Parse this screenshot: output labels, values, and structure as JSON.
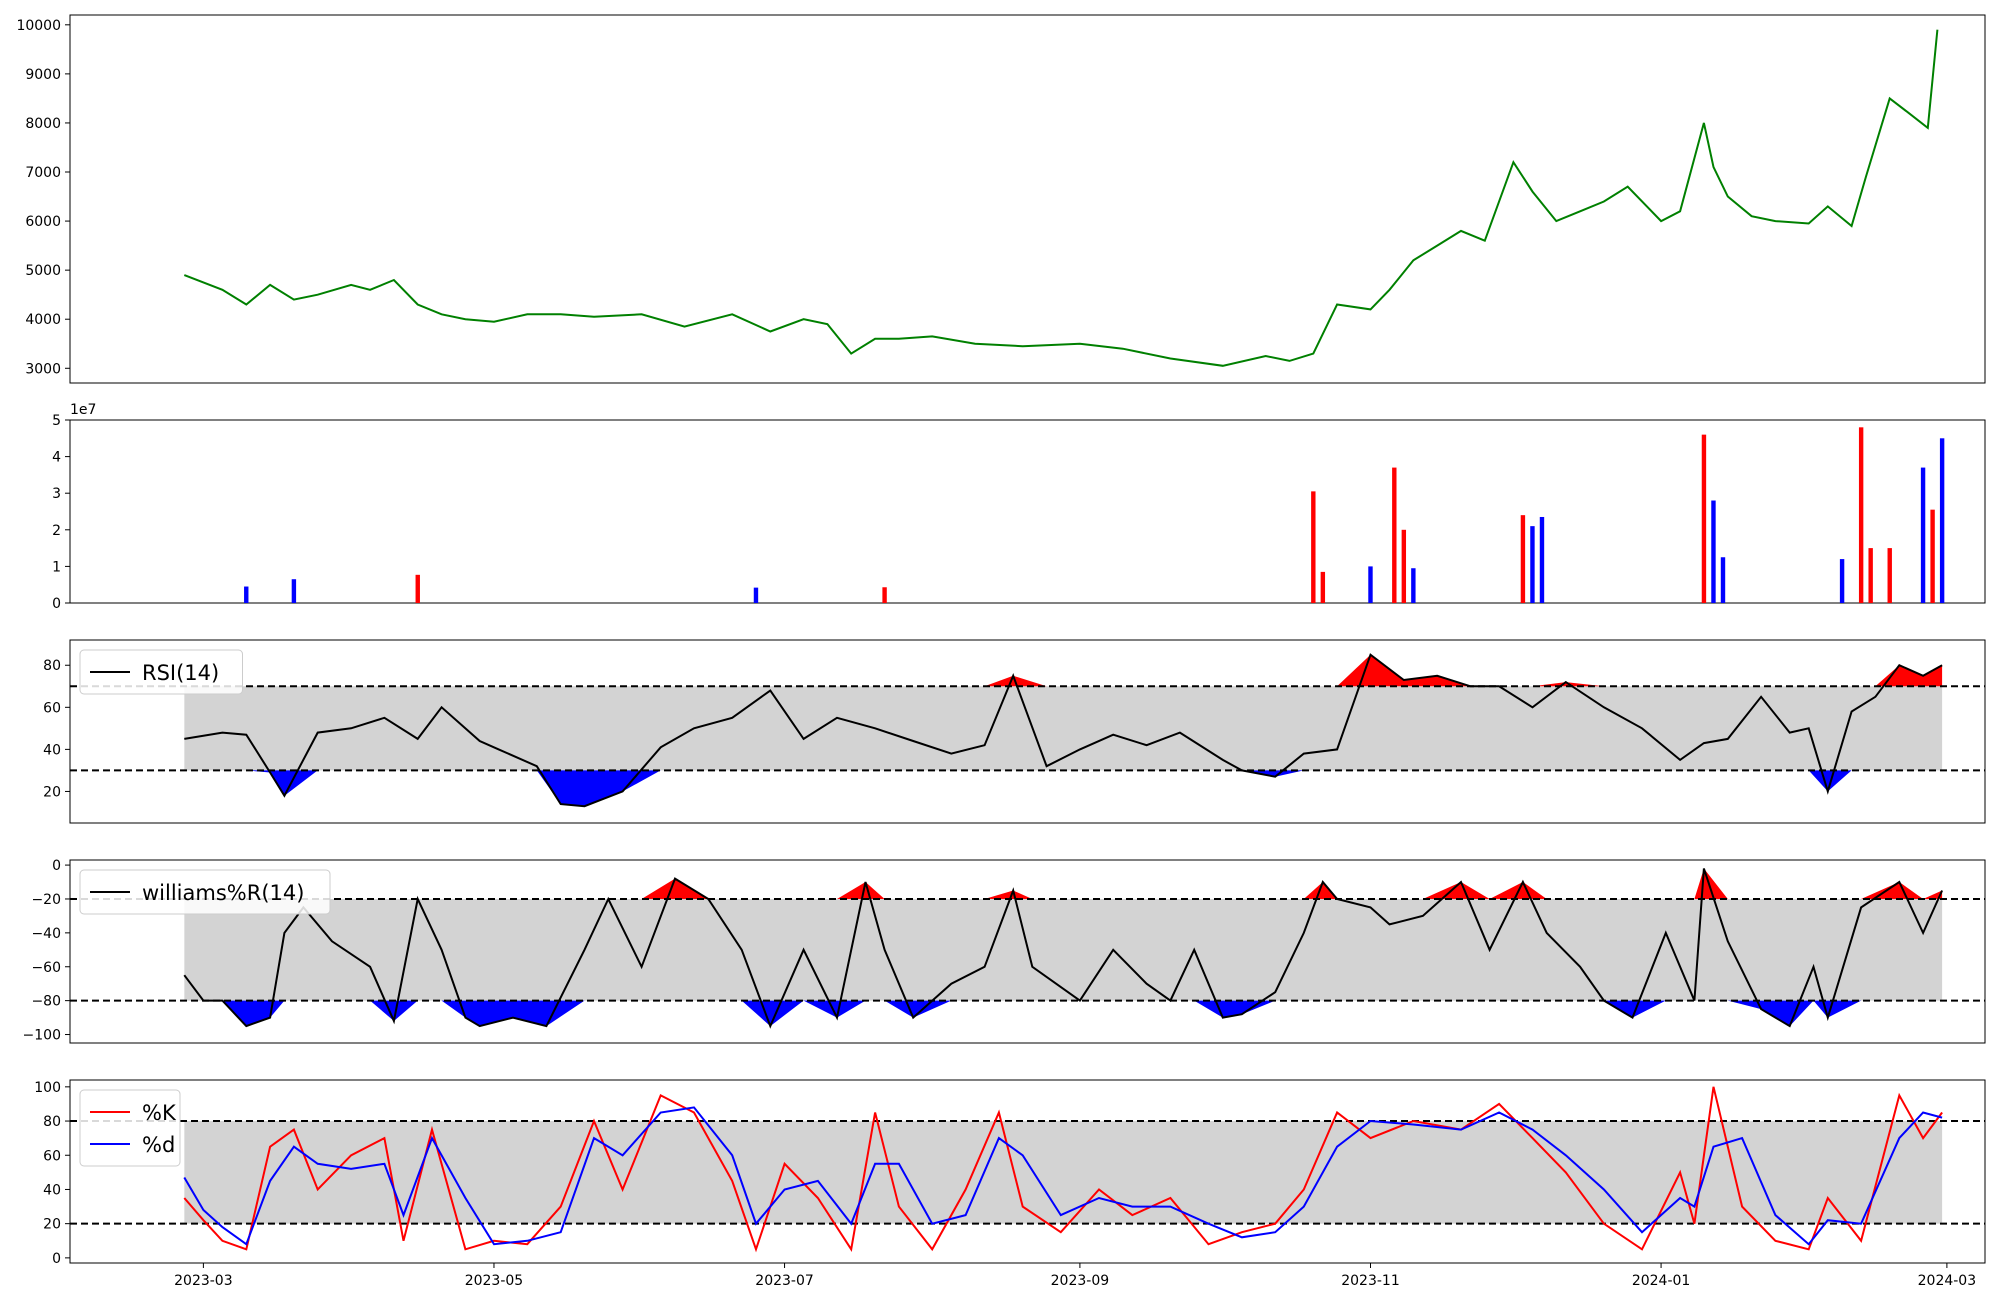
{
  "chart_data": [
    {
      "id": "price",
      "type": "line",
      "xlabel": "",
      "ylabel": "",
      "ylim": [
        2700,
        10200
      ],
      "yticks": [
        3000,
        4000,
        5000,
        6000,
        7000,
        8000,
        9000,
        10000
      ],
      "ytick_labels": [
        "3000",
        "4000",
        "5000",
        "6000",
        "7000",
        "8000",
        "9000",
        "10000"
      ],
      "grid": false,
      "colors": {
        "line": "#008000"
      },
      "series": [
        {
          "x": [
            "2023-02-25",
            "2023-03-05",
            "2023-03-10",
            "2023-03-15",
            "2023-03-20",
            "2023-03-25",
            "2023-04-01",
            "2023-04-05",
            "2023-04-10",
            "2023-04-15",
            "2023-04-20",
            "2023-04-25",
            "2023-05-01",
            "2023-05-08",
            "2023-05-15",
            "2023-05-22",
            "2023-06-01",
            "2023-06-10",
            "2023-06-20",
            "2023-06-28",
            "2023-07-05",
            "2023-07-10",
            "2023-07-15",
            "2023-07-20",
            "2023-07-25",
            "2023-08-01",
            "2023-08-10",
            "2023-08-20",
            "2023-09-01",
            "2023-09-10",
            "2023-09-20",
            "2023-10-01",
            "2023-10-10",
            "2023-10-15",
            "2023-10-20",
            "2023-10-25",
            "2023-11-01",
            "2023-11-05",
            "2023-11-10",
            "2023-11-15",
            "2023-11-20",
            "2023-11-25",
            "2023-12-01",
            "2023-12-05",
            "2023-12-10",
            "2023-12-15",
            "2023-12-20",
            "2023-12-25",
            "2024-01-01",
            "2024-01-05",
            "2024-01-10",
            "2024-01-12",
            "2024-01-15",
            "2024-01-20",
            "2024-01-25",
            "2024-02-01",
            "2024-02-05",
            "2024-02-10",
            "2024-02-13",
            "2024-02-18",
            "2024-02-22",
            "2024-02-26",
            "2024-02-28"
          ],
          "values": [
            4900,
            4600,
            4300,
            4700,
            4400,
            4500,
            4700,
            4600,
            4800,
            4300,
            4100,
            4000,
            3950,
            4100,
            4100,
            4050,
            4100,
            3850,
            4100,
            3750,
            4000,
            3900,
            3300,
            3600,
            3600,
            3650,
            3500,
            3450,
            3500,
            3400,
            3200,
            3050,
            3250,
            3150,
            3300,
            4300,
            4200,
            4600,
            5200,
            5500,
            5800,
            5600,
            7200,
            6600,
            6000,
            6200,
            6400,
            6700,
            6000,
            6200,
            8000,
            7100,
            6500,
            6100,
            6000,
            5950,
            6300,
            5900,
            6900,
            8500,
            8200,
            7900,
            9900
          ]
        }
      ]
    },
    {
      "id": "volume",
      "type": "bar",
      "ylim": [
        0,
        50000000
      ],
      "yticks": [
        0,
        1,
        2,
        3,
        4,
        5
      ],
      "ytick_labels": [
        "0",
        "1",
        "2",
        "3",
        "4",
        "5"
      ],
      "offset_label": "1e7",
      "colors": {
        "up": "#ff0000",
        "down": "#0000ff"
      },
      "bars": [
        {
          "x": "2023-03-10",
          "value": 4500000,
          "c": "down"
        },
        {
          "x": "2023-03-20",
          "value": 6500000,
          "c": "down"
        },
        {
          "x": "2023-04-15",
          "value": 7700000,
          "c": "up"
        },
        {
          "x": "2023-06-25",
          "value": 4200000,
          "c": "down"
        },
        {
          "x": "2023-07-22",
          "value": 4300000,
          "c": "up"
        },
        {
          "x": "2023-10-20",
          "value": 30500000,
          "c": "up"
        },
        {
          "x": "2023-10-22",
          "value": 8500000,
          "c": "up"
        },
        {
          "x": "2023-11-01",
          "value": 10000000,
          "c": "down"
        },
        {
          "x": "2023-11-06",
          "value": 37000000,
          "c": "up"
        },
        {
          "x": "2023-11-08",
          "value": 20000000,
          "c": "up"
        },
        {
          "x": "2023-11-10",
          "value": 9500000,
          "c": "down"
        },
        {
          "x": "2023-12-03",
          "value": 24000000,
          "c": "up"
        },
        {
          "x": "2023-12-05",
          "value": 21000000,
          "c": "down"
        },
        {
          "x": "2023-12-07",
          "value": 23500000,
          "c": "down"
        },
        {
          "x": "2024-01-10",
          "value": 46000000,
          "c": "up"
        },
        {
          "x": "2024-01-12",
          "value": 28000000,
          "c": "down"
        },
        {
          "x": "2024-01-14",
          "value": 12500000,
          "c": "down"
        },
        {
          "x": "2024-02-08",
          "value": 12000000,
          "c": "down"
        },
        {
          "x": "2024-02-12",
          "value": 48000000,
          "c": "up"
        },
        {
          "x": "2024-02-14",
          "value": 15000000,
          "c": "up"
        },
        {
          "x": "2024-02-18",
          "value": 15000000,
          "c": "up"
        },
        {
          "x": "2024-02-25",
          "value": 37000000,
          "c": "down"
        },
        {
          "x": "2024-02-27",
          "value": 25500000,
          "c": "up"
        },
        {
          "x": "2024-02-29",
          "value": 45000000,
          "c": "down"
        }
      ]
    },
    {
      "id": "rsi",
      "type": "line",
      "ylim": [
        5,
        92
      ],
      "yticks": [
        20,
        40,
        60,
        80
      ],
      "ytick_labels": [
        "20",
        "40",
        "60",
        "80"
      ],
      "levels": [
        30,
        70
      ],
      "legend": [
        "RSI(14)"
      ],
      "colors": {
        "line": "#000000",
        "high": "#ff0000",
        "low": "#0000ff",
        "band": "#d3d3d3"
      },
      "series": [
        {
          "name": "RSI(14)",
          "x": [
            "2023-02-25",
            "2023-03-05",
            "2023-03-10",
            "2023-03-15",
            "2023-03-18",
            "2023-03-25",
            "2023-04-01",
            "2023-04-08",
            "2023-04-15",
            "2023-04-20",
            "2023-04-28",
            "2023-05-02",
            "2023-05-10",
            "2023-05-15",
            "2023-05-20",
            "2023-05-28",
            "2023-06-05",
            "2023-06-12",
            "2023-06-20",
            "2023-06-28",
            "2023-07-05",
            "2023-07-12",
            "2023-07-20",
            "2023-07-28",
            "2023-08-05",
            "2023-08-12",
            "2023-08-18",
            "2023-08-25",
            "2023-09-01",
            "2023-09-08",
            "2023-09-15",
            "2023-09-22",
            "2023-10-01",
            "2023-10-05",
            "2023-10-12",
            "2023-10-18",
            "2023-10-25",
            "2023-11-01",
            "2023-11-08",
            "2023-11-15",
            "2023-11-22",
            "2023-11-28",
            "2023-12-05",
            "2023-12-12",
            "2023-12-20",
            "2023-12-28",
            "2024-01-05",
            "2024-01-10",
            "2024-01-15",
            "2024-01-22",
            "2024-01-28",
            "2024-02-01",
            "2024-02-05",
            "2024-02-10",
            "2024-02-15",
            "2024-02-20",
            "2024-02-25",
            "2024-02-29"
          ],
          "values": [
            45,
            48,
            47,
            29,
            18,
            48,
            50,
            55,
            45,
            60,
            44,
            40,
            32,
            14,
            13,
            20,
            41,
            50,
            55,
            68,
            45,
            55,
            50,
            44,
            38,
            42,
            75,
            32,
            40,
            47,
            42,
            48,
            35,
            30,
            27,
            38,
            40,
            85,
            73,
            75,
            70,
            70,
            60,
            72,
            60,
            50,
            35,
            43,
            45,
            65,
            48,
            50,
            20,
            58,
            65,
            80,
            75,
            80
          ]
        }
      ]
    },
    {
      "id": "williams",
      "type": "line",
      "ylim": [
        -105,
        3
      ],
      "yticks": [
        -100,
        -80,
        -60,
        -40,
        -20,
        0
      ],
      "ytick_labels": [
        "−100",
        "−80",
        "−60",
        "−40",
        "−20",
        "0"
      ],
      "levels": [
        -20,
        -80
      ],
      "legend": [
        "williams%R(14)"
      ],
      "colors": {
        "line": "#000000",
        "high": "#ff0000",
        "low": "#0000ff",
        "band": "#d3d3d3"
      },
      "series": [
        {
          "name": "williams%R(14)",
          "x": [
            "2023-02-25",
            "2023-03-01",
            "2023-03-05",
            "2023-03-10",
            "2023-03-15",
            "2023-03-18",
            "2023-03-22",
            "2023-03-28",
            "2023-04-05",
            "2023-04-10",
            "2023-04-15",
            "2023-04-20",
            "2023-04-25",
            "2023-04-28",
            "2023-05-05",
            "2023-05-12",
            "2023-05-20",
            "2023-05-25",
            "2023-06-01",
            "2023-06-08",
            "2023-06-15",
            "2023-06-22",
            "2023-06-28",
            "2023-07-05",
            "2023-07-12",
            "2023-07-18",
            "2023-07-22",
            "2023-07-28",
            "2023-08-05",
            "2023-08-12",
            "2023-08-18",
            "2023-08-22",
            "2023-09-01",
            "2023-09-08",
            "2023-09-15",
            "2023-09-20",
            "2023-09-25",
            "2023-10-01",
            "2023-10-05",
            "2023-10-12",
            "2023-10-18",
            "2023-10-22",
            "2023-10-25",
            "2023-11-01",
            "2023-11-05",
            "2023-11-12",
            "2023-11-20",
            "2023-11-26",
            "2023-12-03",
            "2023-12-08",
            "2023-12-15",
            "2023-12-20",
            "2023-12-26",
            "2024-01-02",
            "2024-01-08",
            "2024-01-10",
            "2024-01-15",
            "2024-01-22",
            "2024-01-28",
            "2024-02-02",
            "2024-02-05",
            "2024-02-12",
            "2024-02-20",
            "2024-02-25",
            "2024-02-29"
          ],
          "values": [
            -65,
            -80,
            -80,
            -95,
            -90,
            -40,
            -25,
            -45,
            -60,
            -92,
            -20,
            -50,
            -90,
            -95,
            -90,
            -95,
            -50,
            -20,
            -60,
            -8,
            -20,
            -50,
            -95,
            -50,
            -90,
            -10,
            -50,
            -90,
            -70,
            -60,
            -15,
            -60,
            -80,
            -50,
            -70,
            -80,
            -50,
            -90,
            -88,
            -75,
            -40,
            -10,
            -20,
            -25,
            -35,
            -30,
            -10,
            -50,
            -10,
            -40,
            -60,
            -80,
            -90,
            -40,
            -80,
            -2,
            -45,
            -85,
            -95,
            -60,
            -90,
            -25,
            -10,
            -40,
            -15
          ]
        }
      ]
    },
    {
      "id": "stoch",
      "type": "line",
      "ylim": [
        -3,
        104
      ],
      "yticks": [
        0,
        20,
        40,
        60,
        80,
        100
      ],
      "ytick_labels": [
        "0",
        "20",
        "40",
        "60",
        "80",
        "100"
      ],
      "levels": [
        20,
        80
      ],
      "legend": [
        "%K",
        "%d"
      ],
      "xticks": [
        "2023-03-01",
        "2023-05-01",
        "2023-07-01",
        "2023-09-01",
        "2023-11-01",
        "2024-01-01",
        "2024-03-01"
      ],
      "xtick_labels": [
        "2023-03",
        "2023-05",
        "2023-07",
        "2023-09",
        "2023-11",
        "2024-01",
        "2024-03"
      ],
      "colors": {
        "k": "#ff0000",
        "d": "#0000ff",
        "band": "#d3d3d3"
      },
      "series": [
        {
          "name": "%K",
          "x": [
            "2023-02-25",
            "2023-03-01",
            "2023-03-05",
            "2023-03-10",
            "2023-03-15",
            "2023-03-20",
            "2023-03-25",
            "2023-04-01",
            "2023-04-08",
            "2023-04-12",
            "2023-04-18",
            "2023-04-25",
            "2023-05-01",
            "2023-05-08",
            "2023-05-15",
            "2023-05-22",
            "2023-05-28",
            "2023-06-05",
            "2023-06-12",
            "2023-06-20",
            "2023-06-25",
            "2023-07-01",
            "2023-07-08",
            "2023-07-15",
            "2023-07-20",
            "2023-07-25",
            "2023-08-01",
            "2023-08-08",
            "2023-08-15",
            "2023-08-20",
            "2023-08-28",
            "2023-09-05",
            "2023-09-12",
            "2023-09-20",
            "2023-09-28",
            "2023-10-05",
            "2023-10-12",
            "2023-10-18",
            "2023-10-25",
            "2023-11-01",
            "2023-11-10",
            "2023-11-20",
            "2023-11-28",
            "2023-12-05",
            "2023-12-12",
            "2023-12-20",
            "2023-12-28",
            "2024-01-05",
            "2024-01-08",
            "2024-01-12",
            "2024-01-18",
            "2024-01-25",
            "2024-02-01",
            "2024-02-05",
            "2024-02-12",
            "2024-02-20",
            "2024-02-25",
            "2024-02-29"
          ],
          "values": [
            35,
            22,
            10,
            5,
            65,
            75,
            40,
            60,
            70,
            10,
            75,
            5,
            10,
            8,
            30,
            80,
            40,
            95,
            85,
            45,
            5,
            55,
            35,
            5,
            85,
            30,
            5,
            40,
            85,
            30,
            15,
            40,
            25,
            35,
            8,
            15,
            20,
            40,
            85,
            70,
            80,
            75,
            90,
            70,
            50,
            20,
            5,
            50,
            20,
            100,
            30,
            10,
            5,
            35,
            10,
            95,
            70,
            85
          ]
        },
        {
          "name": "%d",
          "x": [
            "2023-02-25",
            "2023-03-01",
            "2023-03-05",
            "2023-03-10",
            "2023-03-15",
            "2023-03-20",
            "2023-03-25",
            "2023-04-01",
            "2023-04-08",
            "2023-04-12",
            "2023-04-18",
            "2023-04-25",
            "2023-05-01",
            "2023-05-08",
            "2023-05-15",
            "2023-05-22",
            "2023-05-28",
            "2023-06-05",
            "2023-06-12",
            "2023-06-20",
            "2023-06-25",
            "2023-07-01",
            "2023-07-08",
            "2023-07-15",
            "2023-07-20",
            "2023-07-25",
            "2023-08-01",
            "2023-08-08",
            "2023-08-15",
            "2023-08-20",
            "2023-08-28",
            "2023-09-05",
            "2023-09-12",
            "2023-09-20",
            "2023-09-28",
            "2023-10-05",
            "2023-10-12",
            "2023-10-18",
            "2023-10-25",
            "2023-11-01",
            "2023-11-10",
            "2023-11-20",
            "2023-11-28",
            "2023-12-05",
            "2023-12-12",
            "2023-12-20",
            "2023-12-28",
            "2024-01-05",
            "2024-01-08",
            "2024-01-12",
            "2024-01-18",
            "2024-01-25",
            "2024-02-01",
            "2024-02-05",
            "2024-02-12",
            "2024-02-20",
            "2024-02-25",
            "2024-02-29"
          ],
          "values": [
            47,
            28,
            18,
            8,
            45,
            65,
            55,
            52,
            55,
            25,
            70,
            35,
            8,
            10,
            15,
            70,
            60,
            85,
            88,
            60,
            20,
            40,
            45,
            20,
            55,
            55,
            20,
            25,
            70,
            60,
            25,
            35,
            30,
            30,
            20,
            12,
            15,
            30,
            65,
            80,
            78,
            75,
            85,
            75,
            60,
            40,
            15,
            35,
            30,
            65,
            70,
            25,
            8,
            22,
            20,
            70,
            85,
            82
          ]
        }
      ]
    }
  ]
}
